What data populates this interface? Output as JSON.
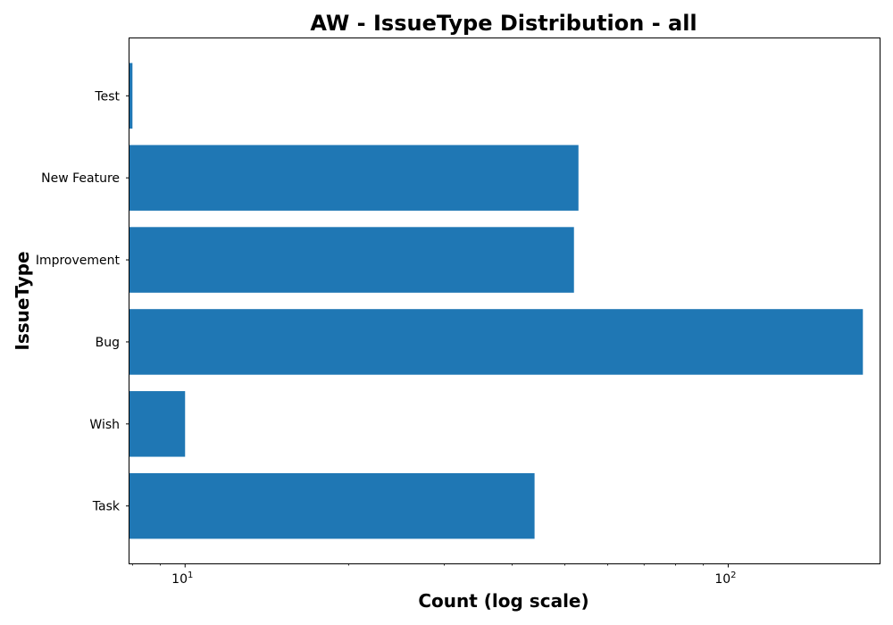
{
  "chart_data": {
    "type": "bar",
    "orientation": "horizontal",
    "title": "AW - IssueType Distribution - all",
    "xlabel": "Count (log scale)",
    "ylabel": "IssueType",
    "x_scale": "log",
    "xlim": [
      7.9,
      190
    ],
    "grid": false,
    "bar_color": "#1f77b4",
    "categories": [
      "Task",
      "Wish",
      "Bug",
      "Improvement",
      "New Feature",
      "Test"
    ],
    "values": [
      44,
      10,
      177,
      52,
      53,
      8
    ],
    "x_major_ticks": [
      {
        "value": 10,
        "base": "10",
        "exp": "1"
      },
      {
        "value": 100,
        "base": "10",
        "exp": "2"
      }
    ],
    "x_minor_ticks": [
      8,
      9,
      20,
      30,
      40,
      50,
      60,
      70,
      80,
      90,
      200
    ]
  }
}
